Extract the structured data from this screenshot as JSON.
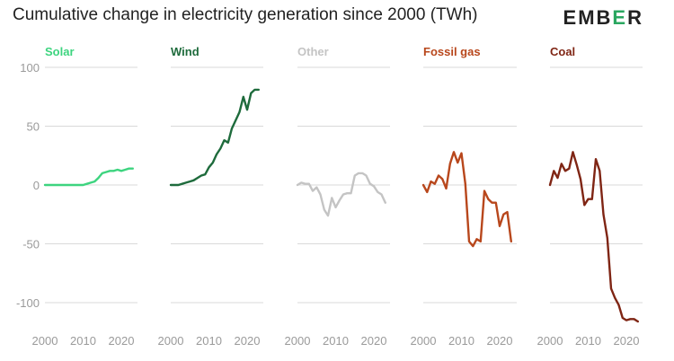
{
  "header": {
    "title": "Cumulative change in electricity generation since 2000 (TWh)",
    "logo_left": "EMB",
    "logo_accent": "E",
    "logo_right": "R"
  },
  "colors": {
    "grid": "#d9d9d9",
    "tick_text": "#9a9a9a",
    "logo_accent": "#2aa760"
  },
  "chart_data": {
    "type": "line",
    "title": "Cumulative change in electricity generation since 2000 (TWh)",
    "ylim": [
      -120,
      100
    ],
    "yticks": [
      100,
      50,
      0,
      -50,
      -100
    ],
    "xlim": [
      2000,
      2023
    ],
    "xticks": [
      2000,
      2010,
      2020
    ],
    "grid": true,
    "years": [
      2000,
      2001,
      2002,
      2003,
      2004,
      2005,
      2006,
      2007,
      2008,
      2009,
      2010,
      2011,
      2012,
      2013,
      2014,
      2015,
      2016,
      2017,
      2018,
      2019,
      2020,
      2021,
      2022,
      2023
    ],
    "series": [
      {
        "name": "Solar",
        "color": "#3dd47f",
        "values": [
          0,
          0,
          0,
          0,
          0,
          0,
          0,
          0,
          0,
          0,
          0,
          1,
          2,
          3,
          6,
          10,
          11,
          12,
          12,
          13,
          12,
          13,
          14,
          14
        ]
      },
      {
        "name": "Wind",
        "color": "#1e6b3c",
        "values": [
          0,
          0,
          0,
          1,
          2,
          3,
          4,
          6,
          8,
          9,
          15,
          19,
          26,
          31,
          38,
          36,
          48,
          55,
          62,
          75,
          64,
          78,
          81,
          81
        ]
      },
      {
        "name": "Other",
        "color": "#c4c4c4",
        "values": [
          0,
          2,
          1,
          1,
          -5,
          -2,
          -8,
          -21,
          -26,
          -11,
          -19,
          -13,
          -8,
          -7,
          -7,
          8,
          10,
          10,
          8,
          1,
          -1,
          -6,
          -8,
          -15
        ]
      },
      {
        "name": "Fossil gas",
        "color": "#b8471c",
        "values": [
          0,
          -6,
          3,
          1,
          8,
          5,
          -3,
          18,
          28,
          19,
          27,
          1,
          -48,
          -52,
          -46,
          -48,
          -5,
          -12,
          -15,
          -15,
          -35,
          -25,
          -23,
          -48
        ]
      },
      {
        "name": "Coal",
        "color": "#7f2514",
        "values": [
          0,
          12,
          6,
          18,
          12,
          14,
          28,
          17,
          5,
          -17,
          -12,
          -12,
          22,
          12,
          -25,
          -45,
          -88,
          -96,
          -102,
          -113,
          -115,
          -114,
          -114,
          -116
        ]
      }
    ]
  }
}
